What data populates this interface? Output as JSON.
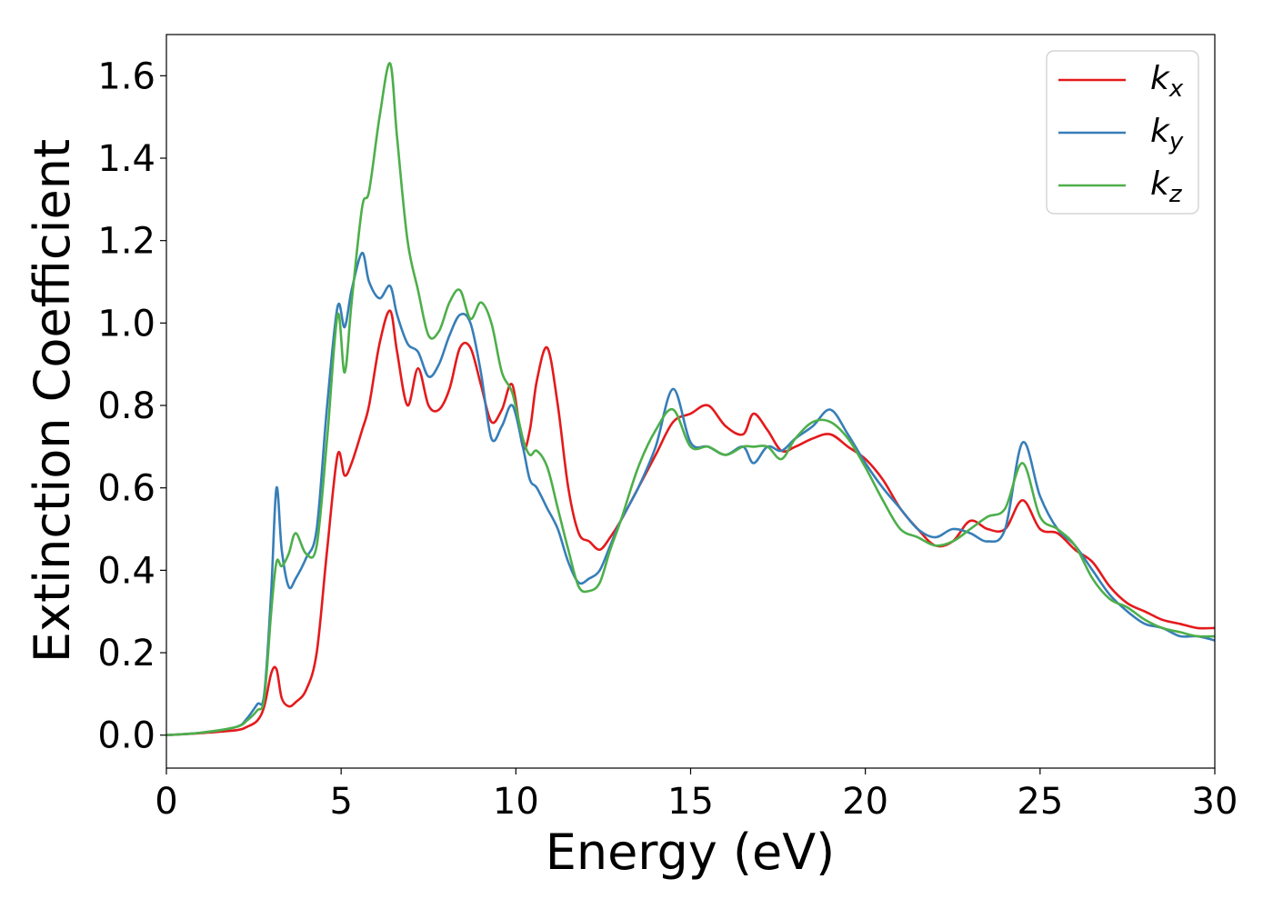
{
  "chart_data": {
    "type": "line",
    "xlabel": "Energy (eV)",
    "ylabel": "Extinction Coefficient",
    "xlim": [
      0,
      30
    ],
    "ylim": [
      -0.08,
      1.7
    ],
    "xticks": [
      0,
      5,
      10,
      15,
      20,
      25,
      30
    ],
    "yticks": [
      0.0,
      0.2,
      0.4,
      0.6,
      0.8,
      1.0,
      1.2,
      1.4,
      1.6
    ],
    "xtick_labels": [
      "0",
      "5",
      "10",
      "15",
      "20",
      "25",
      "30"
    ],
    "ytick_labels": [
      "0.0",
      "0.2",
      "0.4",
      "0.6",
      "0.8",
      "1.0",
      "1.2",
      "1.4",
      "1.6"
    ],
    "grid": false,
    "legend_position": "top-right",
    "series": [
      {
        "name": "k_x",
        "name_main": "k",
        "name_sub": "x",
        "color": "#e41a1c",
        "x": [
          0,
          1,
          2,
          2.3,
          2.6,
          2.8,
          3.0,
          3.15,
          3.3,
          3.5,
          3.7,
          4.0,
          4.3,
          4.6,
          4.9,
          5.1,
          5.3,
          5.6,
          5.8,
          6.1,
          6.4,
          6.6,
          6.9,
          7.2,
          7.5,
          7.8,
          8.1,
          8.4,
          8.7,
          9.0,
          9.3,
          9.6,
          9.9,
          10.2,
          10.4,
          10.6,
          10.9,
          11.2,
          11.5,
          11.8,
          12.1,
          12.4,
          12.7,
          13.0,
          13.5,
          14.0,
          14.5,
          15.0,
          15.5,
          16.0,
          16.5,
          16.8,
          17.2,
          17.6,
          18.0,
          18.5,
          19.0,
          19.5,
          20.0,
          20.5,
          21.0,
          21.5,
          22.0,
          22.5,
          23.0,
          23.5,
          24.0,
          24.5,
          25.0,
          25.5,
          26.0,
          26.5,
          27.0,
          27.5,
          28.0,
          28.5,
          29.0,
          29.5,
          30.0
        ],
        "values": [
          0.0,
          0.005,
          0.012,
          0.02,
          0.035,
          0.07,
          0.15,
          0.16,
          0.09,
          0.07,
          0.08,
          0.11,
          0.2,
          0.45,
          0.68,
          0.63,
          0.66,
          0.74,
          0.8,
          0.95,
          1.03,
          0.93,
          0.8,
          0.89,
          0.8,
          0.79,
          0.84,
          0.94,
          0.94,
          0.85,
          0.76,
          0.79,
          0.85,
          0.7,
          0.74,
          0.86,
          0.94,
          0.8,
          0.6,
          0.49,
          0.47,
          0.45,
          0.48,
          0.52,
          0.6,
          0.68,
          0.76,
          0.78,
          0.8,
          0.75,
          0.73,
          0.78,
          0.74,
          0.69,
          0.7,
          0.72,
          0.73,
          0.7,
          0.67,
          0.62,
          0.55,
          0.5,
          0.46,
          0.47,
          0.52,
          0.5,
          0.5,
          0.57,
          0.5,
          0.49,
          0.45,
          0.42,
          0.36,
          0.32,
          0.3,
          0.28,
          0.27,
          0.26,
          0.26
        ]
      },
      {
        "name": "k_y",
        "name_main": "k",
        "name_sub": "y",
        "color": "#377eb8",
        "x": [
          0,
          1,
          2,
          2.3,
          2.6,
          2.8,
          3.0,
          3.15,
          3.3,
          3.5,
          3.7,
          4.0,
          4.3,
          4.6,
          4.9,
          5.1,
          5.3,
          5.6,
          5.8,
          6.1,
          6.4,
          6.6,
          6.9,
          7.2,
          7.5,
          7.8,
          8.1,
          8.4,
          8.7,
          9.0,
          9.3,
          9.6,
          9.9,
          10.2,
          10.4,
          10.6,
          10.9,
          11.2,
          11.5,
          11.8,
          12.1,
          12.4,
          12.7,
          13.0,
          13.5,
          14.0,
          14.5,
          15.0,
          15.5,
          16.0,
          16.5,
          16.8,
          17.2,
          17.6,
          18.0,
          18.5,
          19.0,
          19.5,
          20.0,
          20.5,
          21.0,
          21.5,
          22.0,
          22.5,
          23.0,
          23.5,
          24.0,
          24.5,
          25.0,
          25.5,
          26.0,
          26.5,
          27.0,
          27.5,
          28.0,
          28.5,
          29.0,
          29.5,
          30.0
        ],
        "values": [
          0.0,
          0.006,
          0.02,
          0.04,
          0.075,
          0.1,
          0.35,
          0.6,
          0.45,
          0.36,
          0.38,
          0.43,
          0.5,
          0.8,
          1.04,
          0.99,
          1.08,
          1.17,
          1.1,
          1.06,
          1.09,
          1.02,
          0.95,
          0.93,
          0.87,
          0.9,
          0.97,
          1.02,
          1.0,
          0.88,
          0.72,
          0.75,
          0.8,
          0.7,
          0.62,
          0.6,
          0.55,
          0.5,
          0.42,
          0.37,
          0.38,
          0.4,
          0.46,
          0.52,
          0.6,
          0.7,
          0.84,
          0.71,
          0.7,
          0.68,
          0.7,
          0.66,
          0.7,
          0.69,
          0.72,
          0.75,
          0.79,
          0.73,
          0.66,
          0.6,
          0.55,
          0.5,
          0.48,
          0.5,
          0.49,
          0.47,
          0.5,
          0.71,
          0.58,
          0.5,
          0.46,
          0.4,
          0.34,
          0.3,
          0.27,
          0.26,
          0.24,
          0.24,
          0.23
        ]
      },
      {
        "name": "k_z",
        "name_main": "k",
        "name_sub": "z",
        "color": "#4daf4a",
        "x": [
          0,
          1,
          2,
          2.3,
          2.6,
          2.8,
          3.0,
          3.15,
          3.3,
          3.5,
          3.7,
          4.0,
          4.3,
          4.6,
          4.9,
          5.1,
          5.3,
          5.6,
          5.8,
          6.1,
          6.4,
          6.6,
          6.9,
          7.2,
          7.5,
          7.8,
          8.1,
          8.4,
          8.7,
          9.0,
          9.3,
          9.6,
          9.9,
          10.2,
          10.4,
          10.6,
          10.9,
          11.2,
          11.5,
          11.8,
          12.1,
          12.4,
          12.7,
          13.0,
          13.5,
          14.0,
          14.5,
          15.0,
          15.5,
          16.0,
          16.5,
          16.8,
          17.2,
          17.6,
          18.0,
          18.5,
          19.0,
          19.5,
          20.0,
          20.5,
          21.0,
          21.5,
          22.0,
          22.5,
          23.0,
          23.5,
          24.0,
          24.5,
          25.0,
          25.5,
          26.0,
          26.5,
          27.0,
          27.5,
          28.0,
          28.5,
          29.0,
          29.5,
          30.0
        ],
        "values": [
          0.0,
          0.006,
          0.02,
          0.035,
          0.06,
          0.09,
          0.3,
          0.42,
          0.41,
          0.44,
          0.49,
          0.44,
          0.46,
          0.72,
          1.02,
          0.88,
          1.05,
          1.28,
          1.32,
          1.5,
          1.63,
          1.45,
          1.2,
          1.08,
          0.97,
          0.98,
          1.05,
          1.08,
          1.01,
          1.05,
          1.0,
          0.88,
          0.83,
          0.72,
          0.68,
          0.69,
          0.65,
          0.55,
          0.45,
          0.36,
          0.35,
          0.37,
          0.45,
          0.52,
          0.65,
          0.74,
          0.79,
          0.7,
          0.7,
          0.68,
          0.7,
          0.7,
          0.7,
          0.67,
          0.72,
          0.76,
          0.76,
          0.72,
          0.65,
          0.57,
          0.5,
          0.48,
          0.46,
          0.47,
          0.5,
          0.53,
          0.55,
          0.66,
          0.53,
          0.5,
          0.46,
          0.38,
          0.33,
          0.31,
          0.28,
          0.26,
          0.25,
          0.24,
          0.24
        ]
      }
    ]
  }
}
